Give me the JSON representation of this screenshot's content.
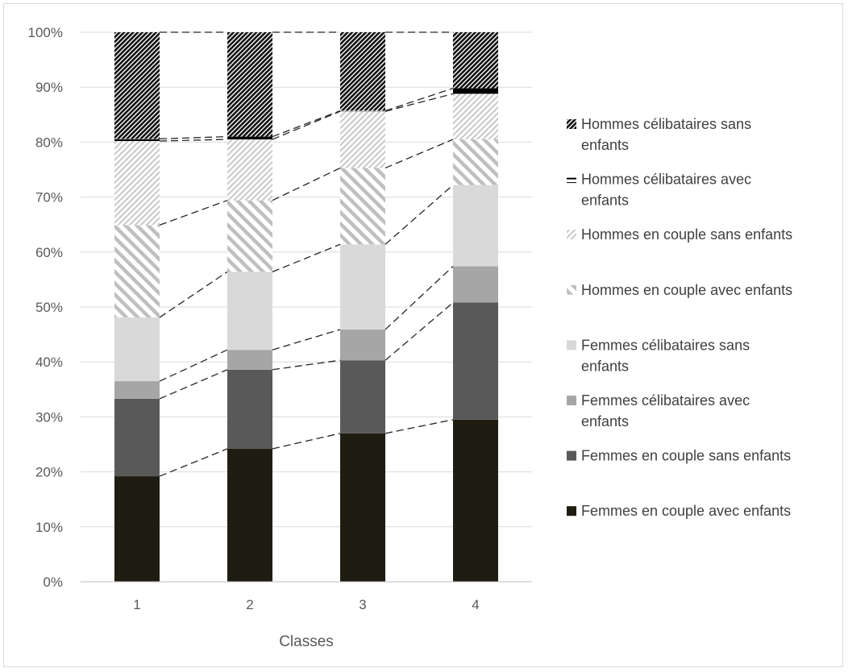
{
  "chart_data": {
    "type": "bar",
    "stacked": true,
    "percent": true,
    "categories": [
      "1",
      "2",
      "3",
      "4"
    ],
    "xlabel": "Classes",
    "ylabel": "",
    "title": "",
    "ylim": [
      0,
      100
    ],
    "yticks": [
      "0%",
      "10%",
      "20%",
      "30%",
      "40%",
      "50%",
      "60%",
      "70%",
      "80%",
      "90%",
      "100%"
    ],
    "grid": true,
    "legend_position": "right",
    "series_lines": "dashed",
    "series": [
      {
        "name": "Femmes en couple avec enfants",
        "values": [
          19.2,
          24.2,
          27.0,
          29.5
        ],
        "color": "#1f1c12",
        "pattern": "solid"
      },
      {
        "name": "Femmes en couple sans enfants",
        "values": [
          14.1,
          14.4,
          13.3,
          21.3
        ],
        "color": "#595959",
        "pattern": "solid"
      },
      {
        "name": "Femmes célibataires avec enfants",
        "values": [
          3.2,
          3.6,
          5.6,
          6.6
        ],
        "color": "#a6a6a6",
        "pattern": "solid"
      },
      {
        "name": "Femmes célibataires sans enfants",
        "values": [
          11.6,
          14.2,
          15.5,
          14.8
        ],
        "color": "#d9d9d9",
        "pattern": "solid"
      },
      {
        "name": "Hommes en couple avec enfants",
        "values": [
          16.8,
          13.0,
          13.9,
          8.3
        ],
        "color": "#bfbfbf",
        "pattern": "wide-diagonal"
      },
      {
        "name": "Hommes en couple sans enfants",
        "values": [
          15.3,
          11.1,
          10.3,
          8.3
        ],
        "color": "#bfbfbf",
        "pattern": "fine-diagonal"
      },
      {
        "name": "Hommes célibataires avec enfants",
        "values": [
          0.4,
          0.5,
          0.1,
          1.0
        ],
        "color": "#000000",
        "pattern": "solid"
      },
      {
        "name": "Hommes célibataires sans enfants",
        "values": [
          19.4,
          19.0,
          14.3,
          10.2
        ],
        "color": "#000000",
        "pattern": "dark-diagonal"
      }
    ]
  },
  "legend": {
    "items": [
      {
        "lines": [
          "Hommes célibataires sans",
          "enfants"
        ],
        "series": 7
      },
      {
        "lines": [
          "Hommes célibataires avec",
          "enfants"
        ],
        "series": 6
      },
      {
        "lines": [
          "Hommes en couple sans enfants"
        ],
        "series": 5
      },
      {
        "lines": [
          "Hommes en couple avec enfants"
        ],
        "series": 4
      },
      {
        "lines": [
          "Femmes célibataires sans",
          "enfants"
        ],
        "series": 3
      },
      {
        "lines": [
          "Femmes célibataires avec",
          "enfants"
        ],
        "series": 2
      },
      {
        "lines": [
          "Femmes en couple sans enfants"
        ],
        "series": 1
      },
      {
        "lines": [
          "Femmes en couple avec enfants"
        ],
        "series": 0
      }
    ]
  },
  "colors": {
    "gridline": "#d9d9d9",
    "axis": "#bfbfbf",
    "connector": "#262626"
  }
}
